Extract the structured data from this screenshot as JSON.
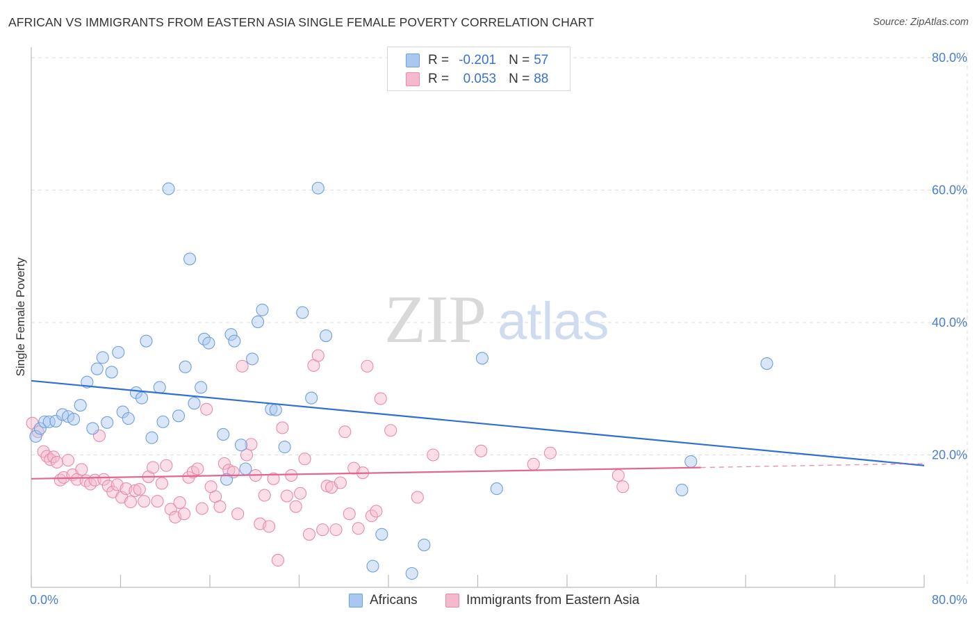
{
  "title": "AFRICAN VS IMMIGRANTS FROM EASTERN ASIA SINGLE FEMALE POVERTY CORRELATION CHART",
  "source": "Source: ZipAtlas.com",
  "watermark": {
    "zip": "ZIP",
    "atlas": "atlas"
  },
  "legend": {
    "r_label": "R =",
    "n_label": "N =",
    "rows": [
      {
        "name": "Africans",
        "r": "-0.201",
        "n": "57"
      },
      {
        "name": "Immigrants from Eastern Asia",
        "r": "0.053",
        "n": "88"
      }
    ]
  },
  "colors": {
    "blue_fill": "#aac8ef",
    "blue_stroke": "#6f9fdc",
    "blue_line": "#2f6fd0",
    "pink_fill": "#f5b8cc",
    "pink_stroke": "#e98aaa",
    "pink_line": "#e0678f",
    "tick_text": "#4a7fd0",
    "grid": "#dcdcdc"
  },
  "chart_data": {
    "type": "scatter",
    "title": "AFRICAN VS IMMIGRANTS FROM EASTERN ASIA SINGLE FEMALE POVERTY CORRELATION CHART",
    "xlabel": "",
    "ylabel": "Single Female Poverty",
    "xlim": [
      0,
      80
    ],
    "ylim": [
      0,
      80
    ],
    "x_tick_labels": [
      "0.0%",
      "80.0%"
    ],
    "y_ticks": [
      20,
      40,
      60,
      80
    ],
    "y_tick_labels": [
      "20.0%",
      "40.0%",
      "60.0%",
      "80.0%"
    ],
    "grid": true,
    "series": [
      {
        "name": "Africans",
        "color": "blue",
        "trend": {
          "x0": 0,
          "y0": 31.2,
          "x1": 80,
          "y1": 18.4
        },
        "points": [
          [
            0.4,
            22.8
          ],
          [
            0.8,
            24
          ],
          [
            1.2,
            25
          ],
          [
            1.6,
            25
          ],
          [
            2.2,
            25.1
          ],
          [
            2.8,
            26.1
          ],
          [
            3.3,
            25.8
          ],
          [
            3.8,
            25.4
          ],
          [
            4.4,
            27.5
          ],
          [
            5,
            31
          ],
          [
            5.5,
            24
          ],
          [
            5.9,
            33
          ],
          [
            6.4,
            34.7
          ],
          [
            6.8,
            24.9
          ],
          [
            7.2,
            32.5
          ],
          [
            7.8,
            35.5
          ],
          [
            8.2,
            26.5
          ],
          [
            8.7,
            25.5
          ],
          [
            9.4,
            29.4
          ],
          [
            9.9,
            28.6
          ],
          [
            10.3,
            37.2
          ],
          [
            10.8,
            22.6
          ],
          [
            11.5,
            30.2
          ],
          [
            11.8,
            25
          ],
          [
            12.3,
            60.2
          ],
          [
            13.2,
            25.9
          ],
          [
            13.8,
            33.3
          ],
          [
            14.2,
            49.6
          ],
          [
            14.6,
            27.8
          ],
          [
            15.2,
            30.2
          ],
          [
            15.5,
            37.5
          ],
          [
            15.9,
            36.9
          ],
          [
            17.2,
            23.1
          ],
          [
            17.5,
            16.3
          ],
          [
            17.9,
            38.2
          ],
          [
            18.2,
            37.2
          ],
          [
            18.8,
            21.5
          ],
          [
            19.2,
            17.9
          ],
          [
            19.8,
            34.5
          ],
          [
            20.3,
            40.1
          ],
          [
            20.7,
            41.9
          ],
          [
            21.5,
            26.9
          ],
          [
            21.9,
            26.8
          ],
          [
            22.7,
            21.2
          ],
          [
            24.3,
            41.5
          ],
          [
            25.1,
            28.6
          ],
          [
            25.7,
            60.3
          ],
          [
            26.4,
            38
          ],
          [
            30.6,
            3.2
          ],
          [
            31.4,
            8
          ],
          [
            34.1,
            2.1
          ],
          [
            35.2,
            6.4
          ],
          [
            40.4,
            34.6
          ],
          [
            41.7,
            14.9
          ],
          [
            58.3,
            14.7
          ],
          [
            59.1,
            19
          ],
          [
            65.9,
            33.8
          ]
        ]
      },
      {
        "name": "Immigrants from Eastern Asia",
        "color": "pink",
        "trend": {
          "x0": 0,
          "y0": 16.4,
          "x1": 60,
          "y1": 18.1,
          "dash_to_x": 80,
          "dash_to_y": 18.7
        },
        "points": [
          [
            0.1,
            24.8
          ],
          [
            0.6,
            23.5
          ],
          [
            1.1,
            20.5
          ],
          [
            1.4,
            19.8
          ],
          [
            1.7,
            19.3
          ],
          [
            2,
            19.7
          ],
          [
            2.3,
            18.9
          ],
          [
            2.6,
            16.2
          ],
          [
            2.9,
            16.6
          ],
          [
            3.3,
            19.2
          ],
          [
            3.7,
            17
          ],
          [
            4.1,
            16.3
          ],
          [
            4.5,
            17.8
          ],
          [
            4.9,
            16.1
          ],
          [
            5.3,
            15.6
          ],
          [
            5.7,
            16.2
          ],
          [
            6.1,
            22.9
          ],
          [
            6.5,
            16.3
          ],
          [
            6.9,
            15.3
          ],
          [
            7.3,
            14.4
          ],
          [
            7.7,
            15.5
          ],
          [
            8.1,
            13.6
          ],
          [
            8.5,
            14.9
          ],
          [
            8.9,
            12.9
          ],
          [
            9.3,
            14.6
          ],
          [
            9.7,
            14.8
          ],
          [
            10.1,
            13
          ],
          [
            10.5,
            16.7
          ],
          [
            10.9,
            18.1
          ],
          [
            11.3,
            13
          ],
          [
            11.7,
            15.7
          ],
          [
            12.1,
            18.4
          ],
          [
            12.5,
            11.8
          ],
          [
            12.9,
            10.6
          ],
          [
            13.3,
            12.8
          ],
          [
            13.7,
            11.1
          ],
          [
            14.1,
            16.6
          ],
          [
            14.5,
            17.4
          ],
          [
            14.9,
            17.9
          ],
          [
            15.3,
            11.9
          ],
          [
            15.7,
            26.9
          ],
          [
            16.1,
            15.2
          ],
          [
            16.5,
            13.7
          ],
          [
            16.9,
            12.2
          ],
          [
            17.3,
            18.7
          ],
          [
            17.7,
            17.7
          ],
          [
            18.1,
            17.4
          ],
          [
            18.5,
            11.1
          ],
          [
            18.9,
            33.4
          ],
          [
            19.3,
            20
          ],
          [
            19.7,
            21.6
          ],
          [
            20.1,
            16.9
          ],
          [
            20.5,
            9.6
          ],
          [
            20.9,
            13.9
          ],
          [
            21.3,
            9.2
          ],
          [
            21.7,
            16.4
          ],
          [
            22.1,
            4.1
          ],
          [
            22.5,
            24.1
          ],
          [
            22.9,
            13.8
          ],
          [
            23.3,
            16.9
          ],
          [
            23.7,
            12.2
          ],
          [
            24.1,
            14.2
          ],
          [
            24.5,
            19.4
          ],
          [
            24.9,
            8
          ],
          [
            25.3,
            33.5
          ],
          [
            25.7,
            35
          ],
          [
            26.1,
            8.7
          ],
          [
            26.5,
            15.3
          ],
          [
            26.9,
            15.1
          ],
          [
            27.3,
            8.7
          ],
          [
            27.7,
            15.8
          ],
          [
            28.1,
            23.5
          ],
          [
            28.5,
            11.1
          ],
          [
            28.9,
            18
          ],
          [
            29.3,
            8.9
          ],
          [
            29.7,
            17.3
          ],
          [
            30.1,
            33.4
          ],
          [
            30.5,
            10.8
          ],
          [
            30.9,
            11.5
          ],
          [
            31.3,
            28.5
          ],
          [
            32.2,
            23.7
          ],
          [
            34.6,
            13.6
          ],
          [
            36,
            20
          ],
          [
            40.3,
            20.6
          ],
          [
            45,
            18.6
          ],
          [
            46.5,
            20.3
          ],
          [
            52.6,
            16.9
          ],
          [
            53,
            15.2
          ]
        ]
      }
    ]
  }
}
